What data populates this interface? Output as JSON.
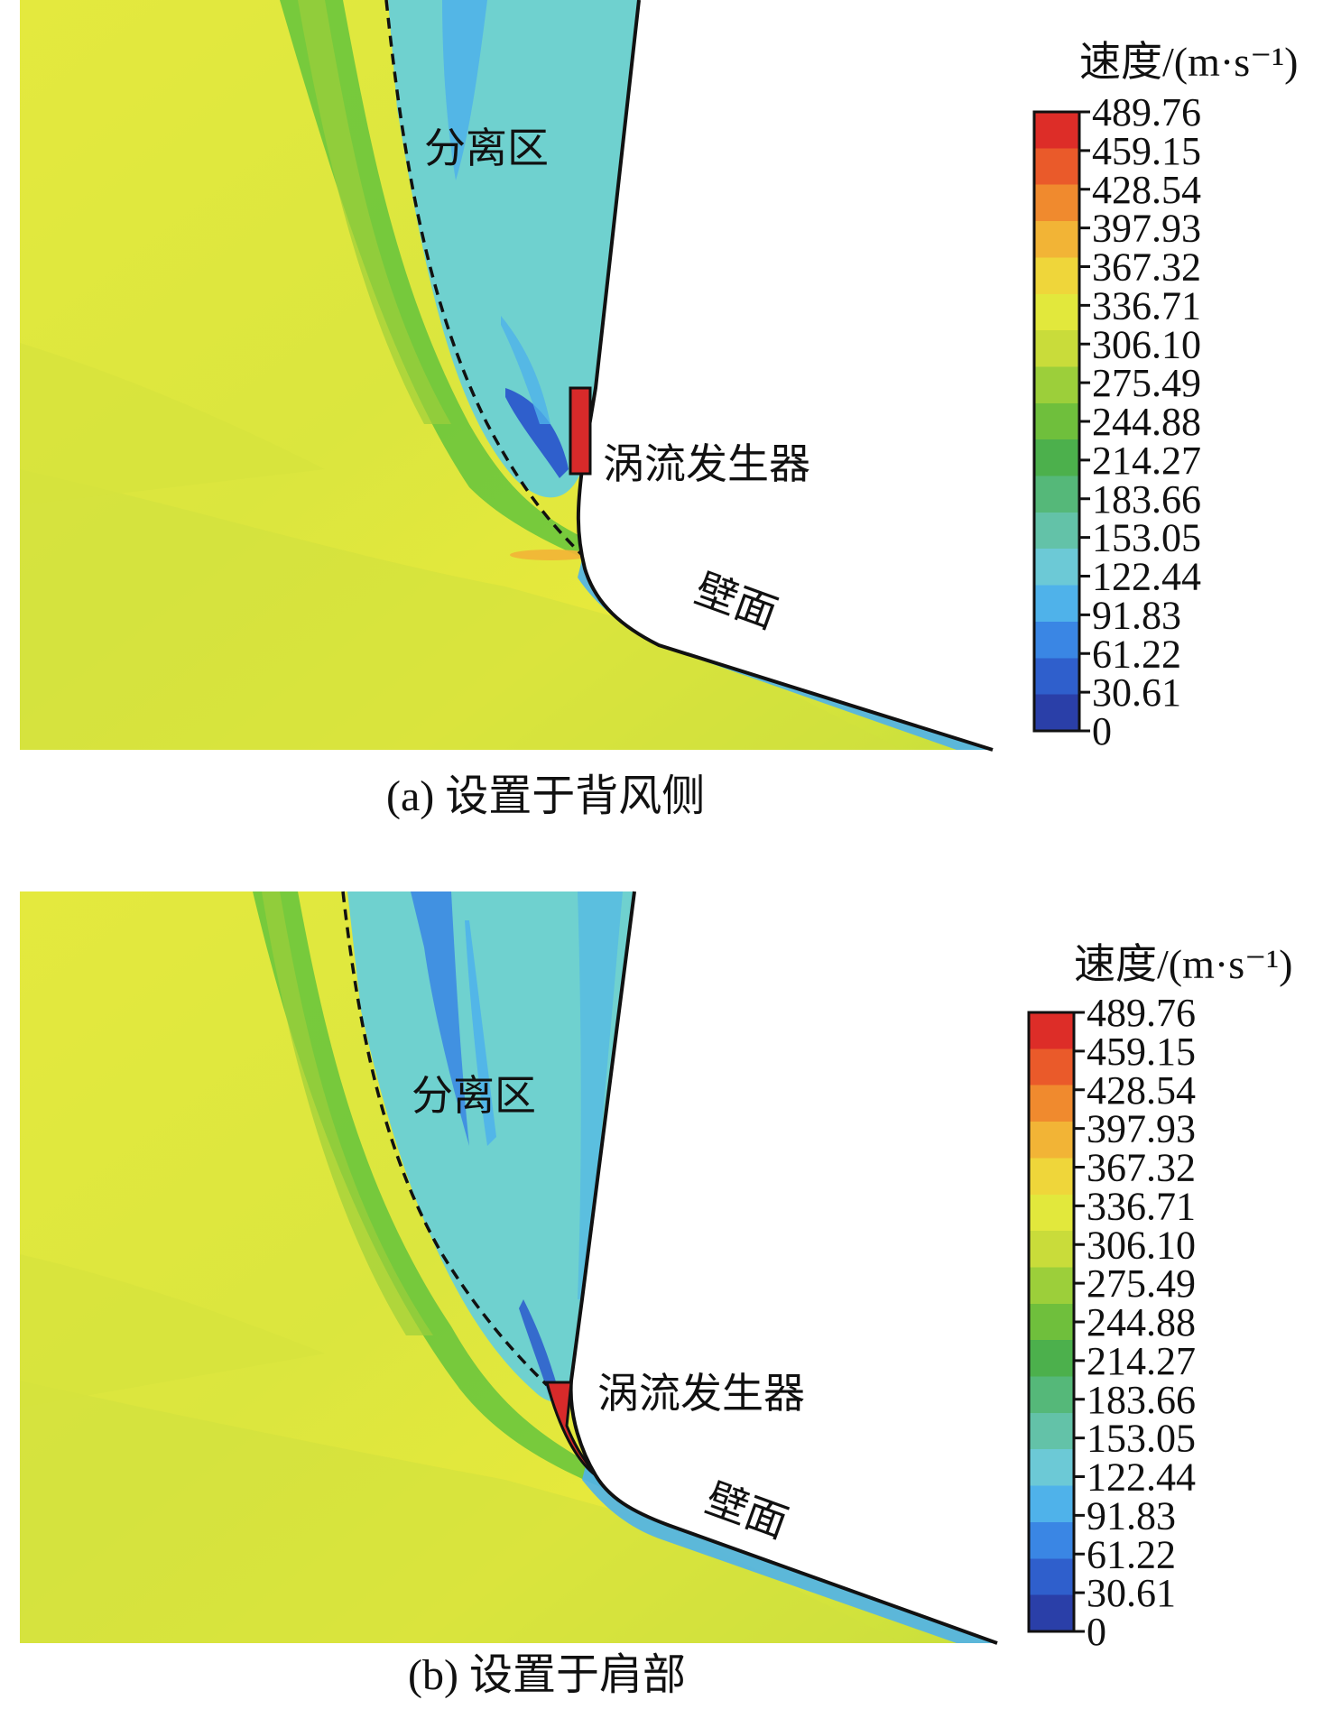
{
  "figure": {
    "panels": [
      {
        "id": "a",
        "caption": "(a) 设置于背风侧",
        "labels": {
          "separation_zone": "分离区",
          "vortex_generator": "涡流发生器",
          "wall": "壁面"
        },
        "colorbar": {
          "title": "速度/(m·s⁻¹)",
          "ticks": [
            "489.76",
            "459.15",
            "428.54",
            "397.93",
            "367.32",
            "336.71",
            "306.10",
            "275.49",
            "244.88",
            "214.27",
            "183.66",
            "153.05",
            "122.44",
            "91.83",
            "61.22",
            "30.61",
            "0"
          ]
        }
      },
      {
        "id": "b",
        "caption": "(b) 设置于肩部",
        "labels": {
          "separation_zone": "分离区",
          "vortex_generator": "涡流发生器",
          "wall": "壁面"
        },
        "colorbar": {
          "title": "速度/(m·s⁻¹)",
          "ticks": [
            "489.76",
            "459.15",
            "428.54",
            "397.93",
            "367.32",
            "336.71",
            "306.10",
            "275.49",
            "244.88",
            "214.27",
            "183.66",
            "153.05",
            "122.44",
            "91.83",
            "61.22",
            "30.61",
            "0"
          ]
        }
      }
    ],
    "colors": {
      "freestream": "#e3e83c",
      "separation": "#6fd1cf",
      "low_speed": "#3c8fe0",
      "shear_green": "#5cc23c",
      "vortex_generator": "#d82a2a",
      "wall_line": "#111111"
    },
    "colormap": [
      "#2a3fa8",
      "#2f5fcc",
      "#3a86e4",
      "#4fb2ea",
      "#6cc9d6",
      "#63c2a8",
      "#55b879",
      "#4cb04c",
      "#6fbf3c",
      "#9ccf3a",
      "#c9dc3a",
      "#e2e83c",
      "#efd63a",
      "#f2b436",
      "#f08a2e",
      "#ea5a2a",
      "#dd2d28"
    ]
  }
}
